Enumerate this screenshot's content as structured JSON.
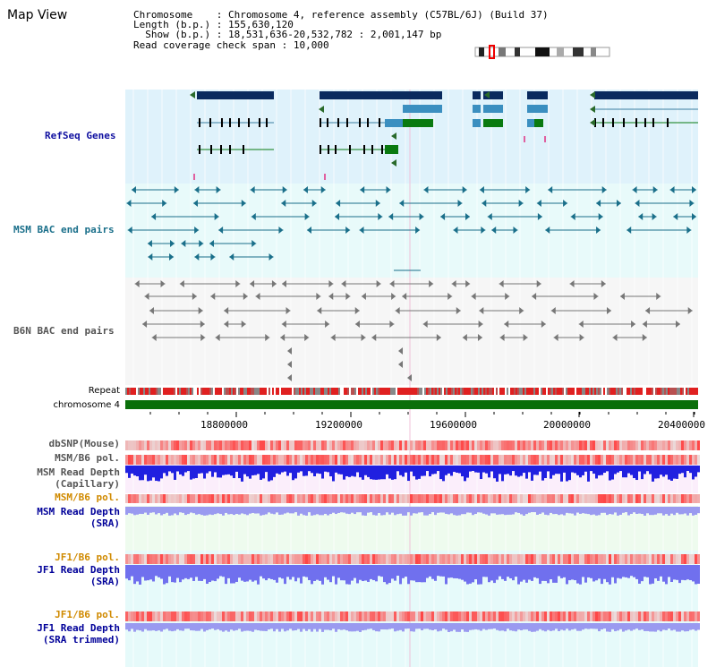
{
  "title": "Map View",
  "info": {
    "chromosome_label": "Chromosome",
    "chromosome_value": "Chromosome 4, reference assembly (C57BL/6J) (Build 37)",
    "length_label": "Length (b.p.)",
    "length_value": "155,630,120",
    "show_label": "Show (b.p.)",
    "show_value": "18,531,636-20,532,782 : 2,001,147 bp",
    "coverage_label": "Read coverage check span",
    "coverage_value": "10,000"
  },
  "tracks": {
    "refseq": "RefSeq Genes",
    "msm_bac": "MSM BAC end pairs",
    "b6n_bac": "B6N BAC end pairs",
    "repeat": "Repeat",
    "chromosome": "chromosome 4"
  },
  "axis_ticks": [
    "18800000",
    "19200000",
    "19600000",
    "20000000",
    "20400000"
  ],
  "lower_tracks": {
    "dbsnp": "dbSNP(Mouse)",
    "msm_b6_pol_1": "MSM/B6 pol.",
    "msm_read_depth_cap_1": "MSM Read Depth",
    "msm_read_depth_cap_2": "(Capillary)",
    "msm_b6_pol_2": "MSM/B6 pol.",
    "msm_read_depth_sra_1": "MSM Read Depth",
    "msm_read_depth_sra_2": "(SRA)",
    "jf1_b6_pol_1": "JF1/B6 pol.",
    "jf1_read_depth_1": "JF1 Read Depth",
    "jf1_read_depth_2": "(SRA)",
    "jf1_b6_pol_2": "JF1/B6 pol.",
    "jf1_read_depth_trim_1": "JF1 Read Depth",
    "jf1_read_depth_trim_2": "(SRA trimmed)"
  },
  "colors": {
    "refseq_label": "#1010a0",
    "msm_label": "#1a6f8a",
    "b6n_label": "#555555",
    "orange_label": "#d08a00",
    "navy_label": "#000099",
    "gene_navy": "#0a2a5e",
    "gene_blue": "#3b8fc0",
    "gene_green": "#0a7a10",
    "bac_teal": "#1a6f8a",
    "bac_gray": "#777777",
    "depth_blue": "#2020e0",
    "depth_lilac": "#9a9af0",
    "snp_red": "#e33333"
  }
}
